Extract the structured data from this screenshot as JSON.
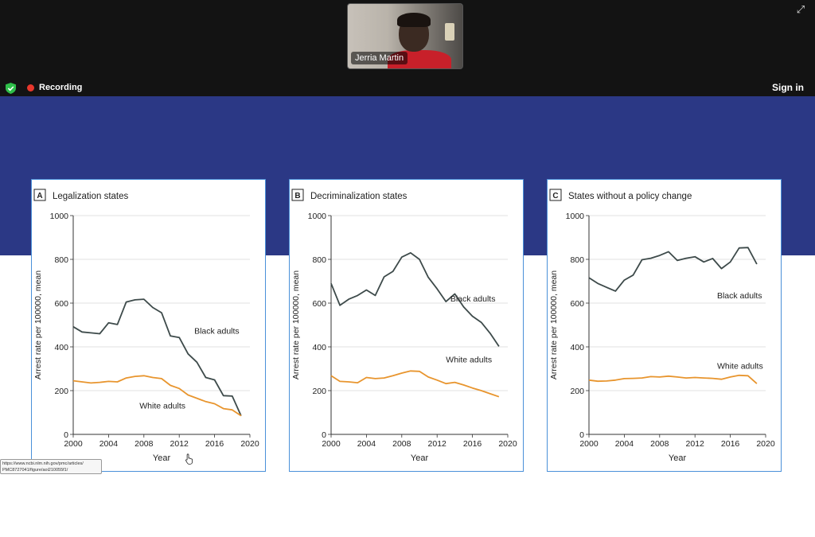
{
  "meeting": {
    "participant_name": "Jerria Martin",
    "recording_label": "Recording",
    "signin_label": "Sign in",
    "icons": {
      "security": "shield-check-icon",
      "recording": "record-dot-icon",
      "expand": "expand-icon"
    },
    "colors": {
      "recording": "#e8372c",
      "security": "#2fbf4a",
      "slide_band": "#2b3885"
    }
  },
  "browser": {
    "status_url_line1": "https://www.ncbi.nlm.nih.gov/pmc/articles/",
    "status_url_line2": "PMC8727041/figure/aoi210055f1/"
  },
  "chart_data": [
    {
      "type": "line",
      "panel_letter": "A",
      "title": "Legalization states",
      "xlabel": "Year",
      "ylabel": "Arrest rate per 100000, mean",
      "xlim": [
        2000,
        2020
      ],
      "ylim": [
        0,
        1000
      ],
      "x_ticks": [
        "2000",
        "2004",
        "2008",
        "2012",
        "2016",
        "2020"
      ],
      "y_ticks": [
        "0",
        "200",
        "400",
        "600",
        "800",
        "1000"
      ],
      "grid": true,
      "series": [
        {
          "name": "Black adults",
          "color": "#3d4a4a",
          "x": [
            2000,
            2001,
            2002,
            2003,
            2004,
            2005,
            2006,
            2007,
            2008,
            2009,
            2010,
            2011,
            2012,
            2013,
            2014,
            2015,
            2016,
            2017,
            2018,
            2019
          ],
          "y": [
            492,
            468,
            464,
            460,
            510,
            502,
            605,
            615,
            618,
            580,
            556,
            450,
            443,
            368,
            330,
            260,
            249,
            177,
            175,
            85
          ]
        },
        {
          "name": "White adults",
          "color": "#e8952e",
          "x": [
            2000,
            2001,
            2002,
            2003,
            2004,
            2005,
            2006,
            2007,
            2008,
            2009,
            2010,
            2011,
            2012,
            2013,
            2014,
            2015,
            2016,
            2017,
            2018,
            2019
          ],
          "y": [
            245,
            240,
            235,
            238,
            242,
            240,
            258,
            265,
            268,
            260,
            255,
            224,
            210,
            180,
            165,
            150,
            140,
            118,
            112,
            85
          ]
        }
      ],
      "annotations": [
        {
          "text": "Black adults",
          "x": 2013.7,
          "y": 460
        },
        {
          "text": "White adults",
          "x": 2007.5,
          "y": 118
        }
      ]
    },
    {
      "type": "line",
      "panel_letter": "B",
      "title": "Decriminalization states",
      "xlabel": "Year",
      "ylabel": "Arrest rate per 100000, mean",
      "xlim": [
        2000,
        2020
      ],
      "ylim": [
        0,
        1000
      ],
      "x_ticks": [
        "2000",
        "2004",
        "2008",
        "2012",
        "2016",
        "2020"
      ],
      "y_ticks": [
        "0",
        "200",
        "400",
        "600",
        "800",
        "1000"
      ],
      "grid": true,
      "series": [
        {
          "name": "Black adults",
          "color": "#3d4a4a",
          "x": [
            2000,
            2001,
            2002,
            2003,
            2004,
            2005,
            2006,
            2007,
            2008,
            2009,
            2010,
            2011,
            2012,
            2013,
            2014,
            2015,
            2016,
            2017,
            2018,
            2019
          ],
          "y": [
            690,
            590,
            618,
            635,
            660,
            635,
            720,
            745,
            810,
            830,
            800,
            718,
            665,
            607,
            642,
            583,
            540,
            512,
            462,
            402
          ]
        },
        {
          "name": "White adults",
          "color": "#e8952e",
          "x": [
            2000,
            2001,
            2002,
            2003,
            2004,
            2005,
            2006,
            2007,
            2008,
            2009,
            2010,
            2011,
            2012,
            2013,
            2014,
            2015,
            2016,
            2017,
            2018,
            2019
          ],
          "y": [
            268,
            242,
            240,
            236,
            260,
            255,
            258,
            268,
            280,
            290,
            288,
            262,
            248,
            232,
            238,
            226,
            212,
            200,
            186,
            172
          ]
        }
      ],
      "annotations": [
        {
          "text": "Black adults",
          "x": 2013.5,
          "y": 608
        },
        {
          "text": "White adults",
          "x": 2013.0,
          "y": 330
        }
      ]
    },
    {
      "type": "line",
      "panel_letter": "C",
      "title": "States without a policy change",
      "xlabel": "Year",
      "ylabel": "Arrest rate per 100000, mean",
      "xlim": [
        2000,
        2020
      ],
      "ylim": [
        0,
        1000
      ],
      "x_ticks": [
        "2000",
        "2004",
        "2008",
        "2012",
        "2016",
        "2020"
      ],
      "y_ticks": [
        "0",
        "200",
        "400",
        "600",
        "800",
        "1000"
      ],
      "grid": true,
      "series": [
        {
          "name": "Black adults",
          "color": "#3d4a4a",
          "x": [
            2000,
            2001,
            2002,
            2003,
            2004,
            2005,
            2006,
            2007,
            2008,
            2009,
            2010,
            2011,
            2012,
            2013,
            2014,
            2015,
            2016,
            2017,
            2018,
            2019
          ],
          "y": [
            716,
            690,
            672,
            655,
            705,
            728,
            798,
            805,
            818,
            835,
            795,
            805,
            812,
            788,
            804,
            758,
            788,
            852,
            854,
            778
          ]
        },
        {
          "name": "White adults",
          "color": "#e8952e",
          "x": [
            2000,
            2001,
            2002,
            2003,
            2004,
            2005,
            2006,
            2007,
            2008,
            2009,
            2010,
            2011,
            2012,
            2013,
            2014,
            2015,
            2016,
            2017,
            2018,
            2019
          ],
          "y": [
            248,
            243,
            244,
            248,
            255,
            256,
            258,
            264,
            262,
            266,
            262,
            258,
            260,
            258,
            256,
            252,
            262,
            270,
            268,
            232
          ]
        }
      ],
      "annotations": [
        {
          "text": "Black adults",
          "x": 2014.5,
          "y": 622
        },
        {
          "text": "White adults",
          "x": 2014.5,
          "y": 300
        }
      ]
    }
  ]
}
